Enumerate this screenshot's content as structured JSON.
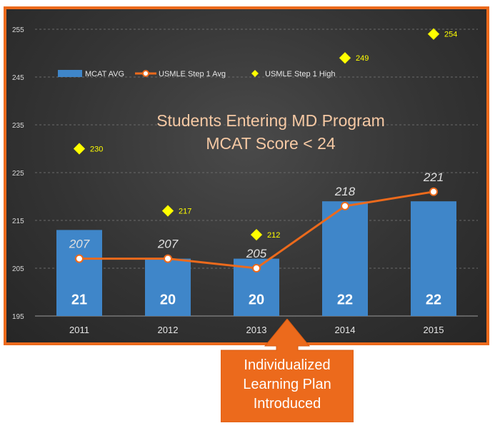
{
  "chart_data": {
    "type": "bar",
    "title": "Students Entering MD Program",
    "subtitle": "MCAT Score < 24",
    "categories": [
      "2011",
      "2012",
      "2013",
      "2014",
      "2015"
    ],
    "ylim": [
      195,
      255
    ],
    "yticks": [
      195,
      205,
      215,
      225,
      235,
      245,
      255
    ],
    "grid": true,
    "legend_position": "top-left",
    "series": [
      {
        "name": "MCAT AVG",
        "type": "bar",
        "values": [
          213,
          207,
          207,
          219,
          219
        ],
        "bar_labels": [
          "21",
          "20",
          "20",
          "22",
          "22"
        ],
        "color": "#3f86c9"
      },
      {
        "name": "USMLE Step 1 Avg",
        "type": "line",
        "values": [
          207,
          207,
          205,
          218,
          221
        ],
        "color": "#ec6a1c"
      },
      {
        "name": "USMLE Step 1 High",
        "type": "scatter",
        "values": [
          230,
          217,
          212,
          249,
          254
        ],
        "color": "#ffff00"
      }
    ]
  },
  "callout": {
    "lines": [
      "Individualized",
      "Learning Plan",
      "Introduced"
    ],
    "color": "#ec6a1c"
  }
}
